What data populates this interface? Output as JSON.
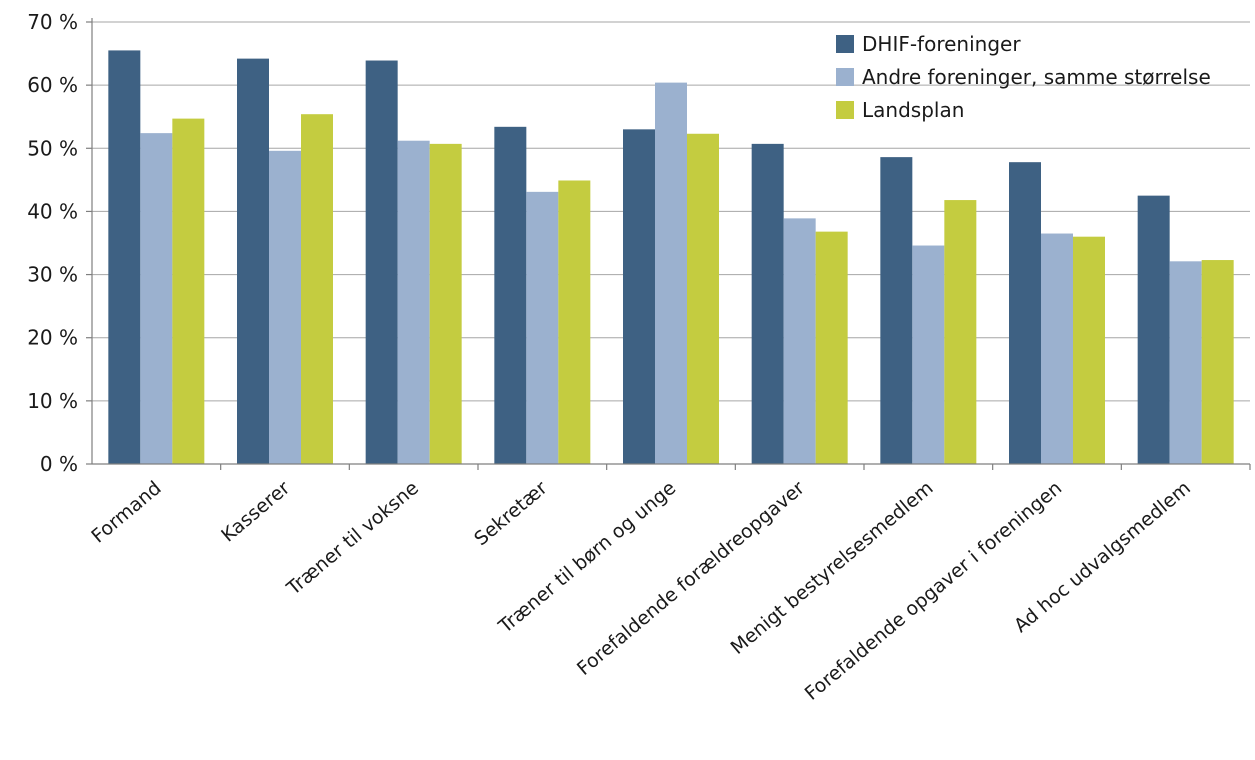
{
  "chart_data": {
    "type": "bar",
    "categories": [
      "Formand",
      "Kasserer",
      "Træner til voksne",
      "Sekretær",
      "Træner til børn og unge",
      "Forefaldende forældreopgaver",
      "Menigt bestyrelsesmedlem",
      "Forefaldende opgaver i foreningen",
      "Ad hoc udvalgsmedlem"
    ],
    "series": [
      {
        "name": "DHIF-foreninger",
        "color": "#3e6183",
        "values": [
          65.5,
          64.2,
          63.9,
          53.4,
          53.0,
          50.7,
          48.6,
          47.8,
          42.5
        ]
      },
      {
        "name": "Andre foreninger, samme størrelse",
        "color": "#9bb1cf",
        "values": [
          52.4,
          49.6,
          51.2,
          43.1,
          60.4,
          38.9,
          34.6,
          36.5,
          32.1
        ]
      },
      {
        "name": "Landsplan",
        "color": "#c4cc40",
        "values": [
          54.7,
          55.4,
          50.7,
          44.9,
          52.3,
          36.8,
          41.8,
          36.0,
          32.3
        ]
      }
    ],
    "yticks": [
      "0 %",
      "10 %",
      "20 %",
      "30 %",
      "40 %",
      "50 %",
      "60 %",
      "70 %"
    ],
    "ylim": [
      0,
      70
    ],
    "grid": true,
    "legend": "top-right",
    "title": "",
    "xlabel": "",
    "ylabel": ""
  }
}
